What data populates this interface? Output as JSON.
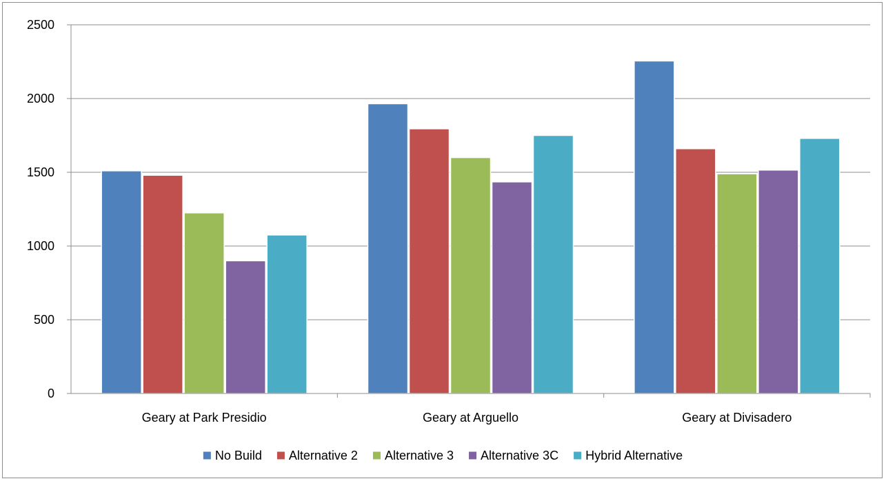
{
  "chart_data": {
    "type": "bar",
    "title": "",
    "xlabel": "",
    "ylabel": "",
    "categories": [
      "Geary at Park Presidio",
      "Geary at Arguello",
      "Geary at Divisadero"
    ],
    "ylim": [
      0,
      2500
    ],
    "yticks": [
      0,
      500,
      1000,
      1500,
      2000,
      2500
    ],
    "grid": true,
    "legend_position": "bottom",
    "series": [
      {
        "name": "No Build",
        "color": "#4F81BD",
        "values": [
          1510,
          1965,
          2255
        ]
      },
      {
        "name": "Alternative 2",
        "color": "#C0504D",
        "values": [
          1480,
          1795,
          1660
        ]
      },
      {
        "name": "Alternative 3",
        "color": "#9BBB59",
        "values": [
          1225,
          1600,
          1490
        ]
      },
      {
        "name": "Alternative 3C",
        "color": "#8064A2",
        "values": [
          900,
          1435,
          1515
        ]
      },
      {
        "name": "Hybrid Alternative",
        "color": "#4BACC6",
        "values": [
          1075,
          1750,
          1730
        ]
      }
    ]
  }
}
